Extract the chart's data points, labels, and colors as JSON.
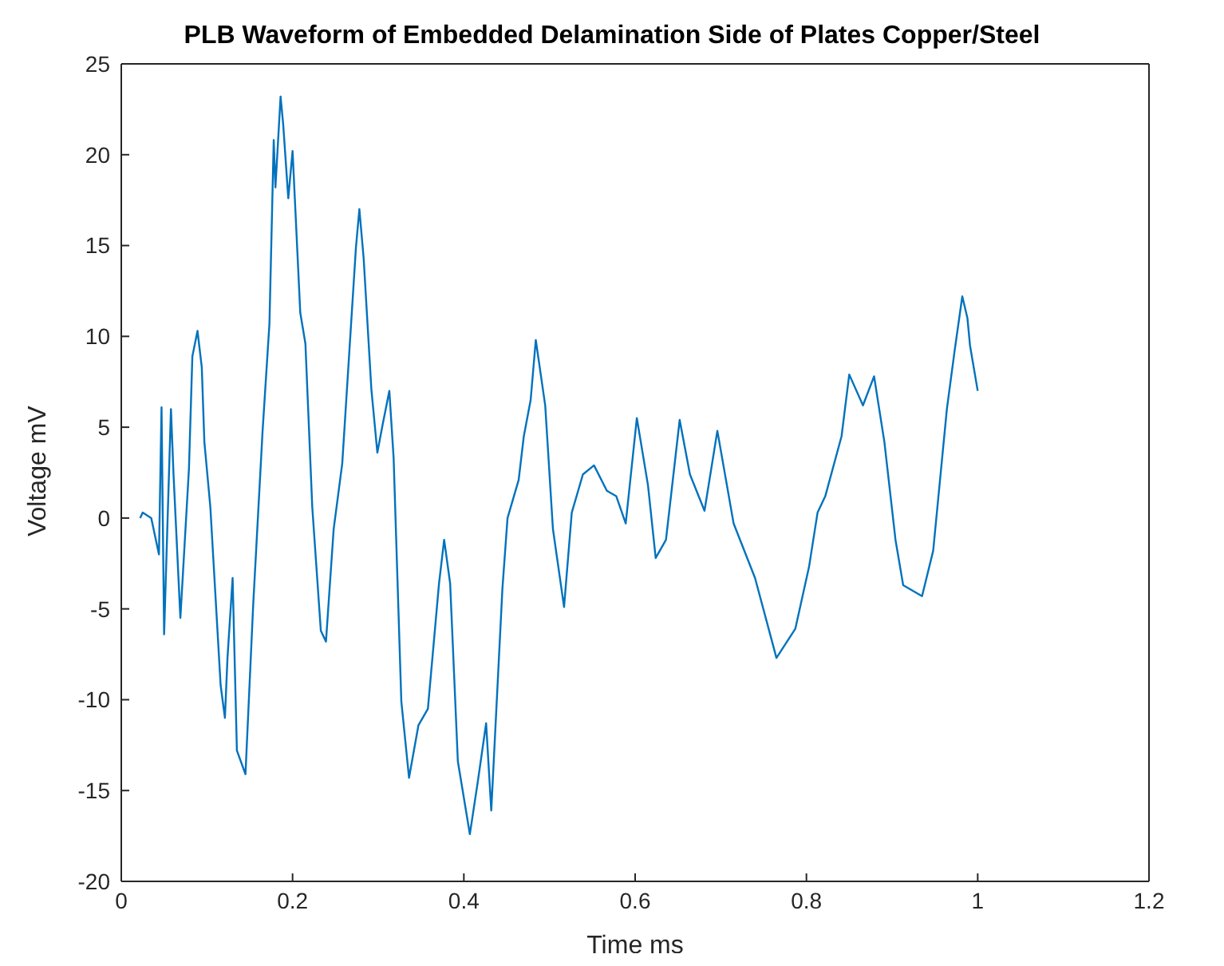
{
  "chart_data": {
    "type": "line",
    "title": "PLB Waveform of Embedded Delamination Side of Plates Copper/Steel",
    "xlabel": "Time ms",
    "ylabel": "Voltage mV",
    "x": [
      0.022,
      0.025,
      0.035,
      0.044,
      0.047,
      0.05,
      0.058,
      0.061,
      0.069,
      0.079,
      0.083,
      0.089,
      0.094,
      0.097,
      0.104,
      0.116,
      0.121,
      0.124,
      0.13,
      0.135,
      0.145,
      0.154,
      0.165,
      0.173,
      0.178,
      0.18,
      0.186,
      0.189,
      0.195,
      0.2,
      0.209,
      0.215,
      0.223,
      0.233,
      0.239,
      0.248,
      0.258,
      0.274,
      0.278,
      0.283,
      0.292,
      0.299,
      0.305,
      0.313,
      0.318,
      0.327,
      0.336,
      0.347,
      0.358,
      0.371,
      0.377,
      0.384,
      0.393,
      0.407,
      0.416,
      0.426,
      0.432,
      0.445,
      0.451,
      0.464,
      0.47,
      0.478,
      0.484,
      0.495,
      0.504,
      0.517,
      0.526,
      0.539,
      0.552,
      0.567,
      0.578,
      0.589,
      0.602,
      0.615,
      0.624,
      0.636,
      0.652,
      0.664,
      0.681,
      0.696,
      0.715,
      0.74,
      0.765,
      0.787,
      0.803,
      0.813,
      0.822,
      0.841,
      0.85,
      0.866,
      0.879,
      0.891,
      0.904,
      0.913,
      0.935,
      0.948,
      0.964,
      0.973,
      0.982,
      0.988,
      0.991,
      1.0
    ],
    "series": [
      {
        "color": "#0072bd",
        "values": [
          0,
          0.3,
          0,
          -2,
          6.1,
          -6.4,
          6,
          2.4,
          -5.5,
          2.7,
          8.9,
          10.3,
          8.3,
          4.2,
          0.6,
          -9.2,
          -11,
          -7.7,
          -3.3,
          -12.8,
          -14.1,
          -4.8,
          4.8,
          10.7,
          20.8,
          18.2,
          23.2,
          21.7,
          17.6,
          20.2,
          11.3,
          9.6,
          0.6,
          -6.2,
          -6.8,
          -0.6,
          3,
          14.9,
          17,
          14.3,
          7.1,
          3.6,
          5.1,
          7,
          3.3,
          -10.1,
          -14.3,
          -11.4,
          -10.5,
          -3.6,
          -1.2,
          -3.6,
          -13.4,
          -17.4,
          -14.6,
          -11.3,
          -16.1,
          -3.9,
          0,
          2.1,
          4.5,
          6.5,
          9.8,
          6.2,
          -0.6,
          -4.9,
          0.3,
          2.4,
          2.9,
          1.5,
          1.2,
          -0.3,
          5.5,
          1.8,
          -2.2,
          -1.2,
          5.4,
          2.4,
          0.4,
          4.8,
          -0.3,
          -3.3,
          -7.7,
          -6.1,
          -2.7,
          0.3,
          1.2,
          4.5,
          7.9,
          6.2,
          7.8,
          4.2,
          -1.2,
          -3.7,
          -4.3,
          -1.8,
          6,
          9.2,
          12.2,
          11,
          9.5,
          7
        ]
      }
    ],
    "xlim": [
      0,
      1.2
    ],
    "xticks": [
      0,
      0.2,
      0.4,
      0.6,
      0.8,
      1,
      1.2
    ],
    "ylim": [
      -20,
      25
    ],
    "yticks": [
      -20,
      -15,
      -10,
      -5,
      0,
      5,
      10,
      15,
      20,
      25
    ],
    "grid": false,
    "legend": false,
    "marker": "none",
    "line_style": "solid"
  }
}
